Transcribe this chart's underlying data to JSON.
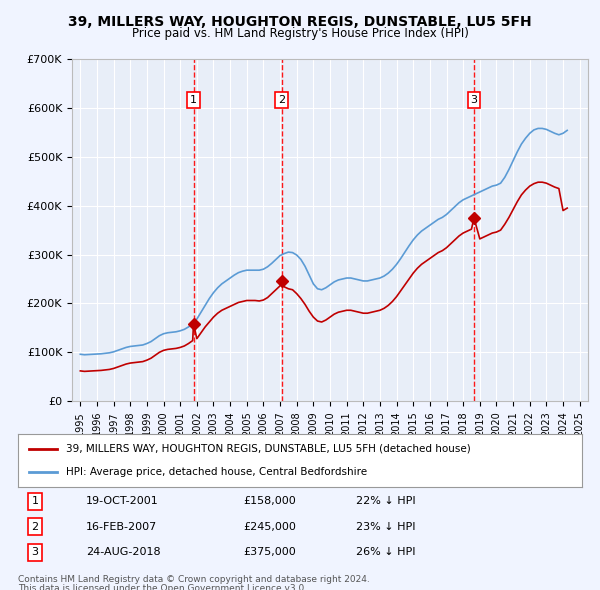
{
  "title": "39, MILLERS WAY, HOUGHTON REGIS, DUNSTABLE, LU5 5FH",
  "subtitle": "Price paid vs. HM Land Registry's House Price Index (HPI)",
  "bg_color": "#f0f4ff",
  "plot_bg_color": "#e8eef8",
  "grid_color": "#ffffff",
  "ylim": [
    0,
    700000
  ],
  "yticks": [
    0,
    100000,
    200000,
    300000,
    400000,
    500000,
    600000,
    700000
  ],
  "ytick_labels": [
    "£0",
    "£100K",
    "£200K",
    "£300K",
    "£400K",
    "£500K",
    "£600K",
    "£700K"
  ],
  "xlim_start": 1994.5,
  "xlim_end": 2025.5,
  "transactions": [
    {
      "num": 1,
      "date": "19-OCT-2001",
      "price": 158000,
      "year": 2001.8,
      "hpi_diff": "22% ↓ HPI"
    },
    {
      "num": 2,
      "date": "16-FEB-2007",
      "price": 245000,
      "year": 2007.1,
      "hpi_diff": "23% ↓ HPI"
    },
    {
      "num": 3,
      "date": "24-AUG-2018",
      "price": 375000,
      "year": 2018.65,
      "hpi_diff": "26% ↓ HPI"
    }
  ],
  "hpi_line_color": "#5b9bd5",
  "price_line_color": "#c00000",
  "vline_color": "#ff0000",
  "marker_color": "#c00000",
  "legend_label_price": "39, MILLERS WAY, HOUGHTON REGIS, DUNSTABLE, LU5 5FH (detached house)",
  "legend_label_hpi": "HPI: Average price, detached house, Central Bedfordshire",
  "footnote1": "Contains HM Land Registry data © Crown copyright and database right 2024.",
  "footnote2": "This data is licensed under the Open Government Licence v3.0.",
  "hpi_data_x": [
    1995,
    1995.25,
    1995.5,
    1995.75,
    1996,
    1996.25,
    1996.5,
    1996.75,
    1997,
    1997.25,
    1997.5,
    1997.75,
    1998,
    1998.25,
    1998.5,
    1998.75,
    1999,
    1999.25,
    1999.5,
    1999.75,
    2000,
    2000.25,
    2000.5,
    2000.75,
    2001,
    2001.25,
    2001.5,
    2001.75,
    2002,
    2002.25,
    2002.5,
    2002.75,
    2003,
    2003.25,
    2003.5,
    2003.75,
    2004,
    2004.25,
    2004.5,
    2004.75,
    2005,
    2005.25,
    2005.5,
    2005.75,
    2006,
    2006.25,
    2006.5,
    2006.75,
    2007,
    2007.25,
    2007.5,
    2007.75,
    2008,
    2008.25,
    2008.5,
    2008.75,
    2009,
    2009.25,
    2009.5,
    2009.75,
    2010,
    2010.25,
    2010.5,
    2010.75,
    2011,
    2011.25,
    2011.5,
    2011.75,
    2012,
    2012.25,
    2012.5,
    2012.75,
    2013,
    2013.25,
    2013.5,
    2013.75,
    2014,
    2014.25,
    2014.5,
    2014.75,
    2015,
    2015.25,
    2015.5,
    2015.75,
    2016,
    2016.25,
    2016.5,
    2016.75,
    2017,
    2017.25,
    2017.5,
    2017.75,
    2018,
    2018.25,
    2018.5,
    2018.75,
    2019,
    2019.25,
    2019.5,
    2019.75,
    2020,
    2020.25,
    2020.5,
    2020.75,
    2021,
    2021.25,
    2021.5,
    2021.75,
    2022,
    2022.25,
    2022.5,
    2022.75,
    2023,
    2023.25,
    2023.5,
    2023.75,
    2024,
    2024.25
  ],
  "hpi_data_y": [
    96000,
    95000,
    95500,
    96000,
    96500,
    97000,
    98000,
    99000,
    101000,
    104000,
    107000,
    110000,
    112000,
    113000,
    114000,
    115000,
    118000,
    122000,
    128000,
    134000,
    138000,
    140000,
    141000,
    142000,
    144000,
    147000,
    152000,
    158000,
    168000,
    182000,
    196000,
    210000,
    222000,
    232000,
    240000,
    246000,
    252000,
    258000,
    263000,
    266000,
    268000,
    268000,
    268000,
    268000,
    270000,
    275000,
    282000,
    290000,
    298000,
    302000,
    305000,
    304000,
    299000,
    290000,
    276000,
    258000,
    240000,
    230000,
    228000,
    232000,
    238000,
    244000,
    248000,
    250000,
    252000,
    252000,
    250000,
    248000,
    246000,
    246000,
    248000,
    250000,
    252000,
    256000,
    262000,
    270000,
    280000,
    292000,
    305000,
    318000,
    330000,
    340000,
    348000,
    354000,
    360000,
    366000,
    372000,
    376000,
    382000,
    390000,
    398000,
    406000,
    412000,
    416000,
    420000,
    424000,
    428000,
    432000,
    436000,
    440000,
    442000,
    446000,
    458000,
    474000,
    492000,
    510000,
    526000,
    538000,
    548000,
    555000,
    558000,
    558000,
    556000,
    552000,
    548000,
    545000,
    548000,
    554000
  ],
  "price_data_x": [
    1995,
    1995.25,
    1995.5,
    1995.75,
    1996,
    1996.25,
    1996.5,
    1996.75,
    1997,
    1997.25,
    1997.5,
    1997.75,
    1998,
    1998.25,
    1998.5,
    1998.75,
    1999,
    1999.25,
    1999.5,
    1999.75,
    2000,
    2000.25,
    2000.5,
    2000.75,
    2001,
    2001.25,
    2001.5,
    2001.75,
    2001.8,
    2002,
    2002.25,
    2002.5,
    2002.75,
    2003,
    2003.25,
    2003.5,
    2003.75,
    2004,
    2004.25,
    2004.5,
    2004.75,
    2005,
    2005.25,
    2005.5,
    2005.75,
    2006,
    2006.25,
    2006.5,
    2006.75,
    2007,
    2007.1,
    2007.25,
    2007.5,
    2007.75,
    2008,
    2008.25,
    2008.5,
    2008.75,
    2009,
    2009.25,
    2009.5,
    2009.75,
    2010,
    2010.25,
    2010.5,
    2010.75,
    2011,
    2011.25,
    2011.5,
    2011.75,
    2012,
    2012.25,
    2012.5,
    2012.75,
    2013,
    2013.25,
    2013.5,
    2013.75,
    2014,
    2014.25,
    2014.5,
    2014.75,
    2015,
    2015.25,
    2015.5,
    2015.75,
    2016,
    2016.25,
    2016.5,
    2016.75,
    2017,
    2017.25,
    2017.5,
    2017.75,
    2018,
    2018.25,
    2018.5,
    2018.65,
    2019,
    2019.25,
    2019.5,
    2019.75,
    2020,
    2020.25,
    2020.5,
    2020.75,
    2021,
    2021.25,
    2021.5,
    2021.75,
    2022,
    2022.25,
    2022.5,
    2022.75,
    2023,
    2023.25,
    2023.5,
    2023.75,
    2024,
    2024.25
  ],
  "price_data_y": [
    62000,
    61000,
    61500,
    62000,
    62500,
    63000,
    64000,
    65000,
    67000,
    70000,
    73000,
    76000,
    78000,
    79000,
    80000,
    81000,
    84000,
    88000,
    94000,
    100000,
    104000,
    106000,
    107000,
    108000,
    110000,
    113000,
    118000,
    124000,
    158000,
    128000,
    140000,
    152000,
    162000,
    172000,
    180000,
    186000,
    190000,
    194000,
    198000,
    202000,
    204000,
    206000,
    206000,
    206000,
    205000,
    207000,
    212000,
    220000,
    228000,
    236000,
    245000,
    234000,
    230000,
    228000,
    220000,
    210000,
    198000,
    184000,
    172000,
    164000,
    162000,
    166000,
    172000,
    178000,
    182000,
    184000,
    186000,
    186000,
    184000,
    182000,
    180000,
    180000,
    182000,
    184000,
    186000,
    190000,
    196000,
    204000,
    214000,
    226000,
    238000,
    250000,
    262000,
    272000,
    280000,
    286000,
    292000,
    298000,
    304000,
    308000,
    314000,
    322000,
    330000,
    338000,
    344000,
    348000,
    352000,
    375000,
    332000,
    336000,
    340000,
    344000,
    346000,
    350000,
    362000,
    376000,
    392000,
    408000,
    422000,
    432000,
    440000,
    445000,
    448000,
    448000,
    446000,
    442000,
    438000,
    435000,
    390000,
    395000
  ]
}
